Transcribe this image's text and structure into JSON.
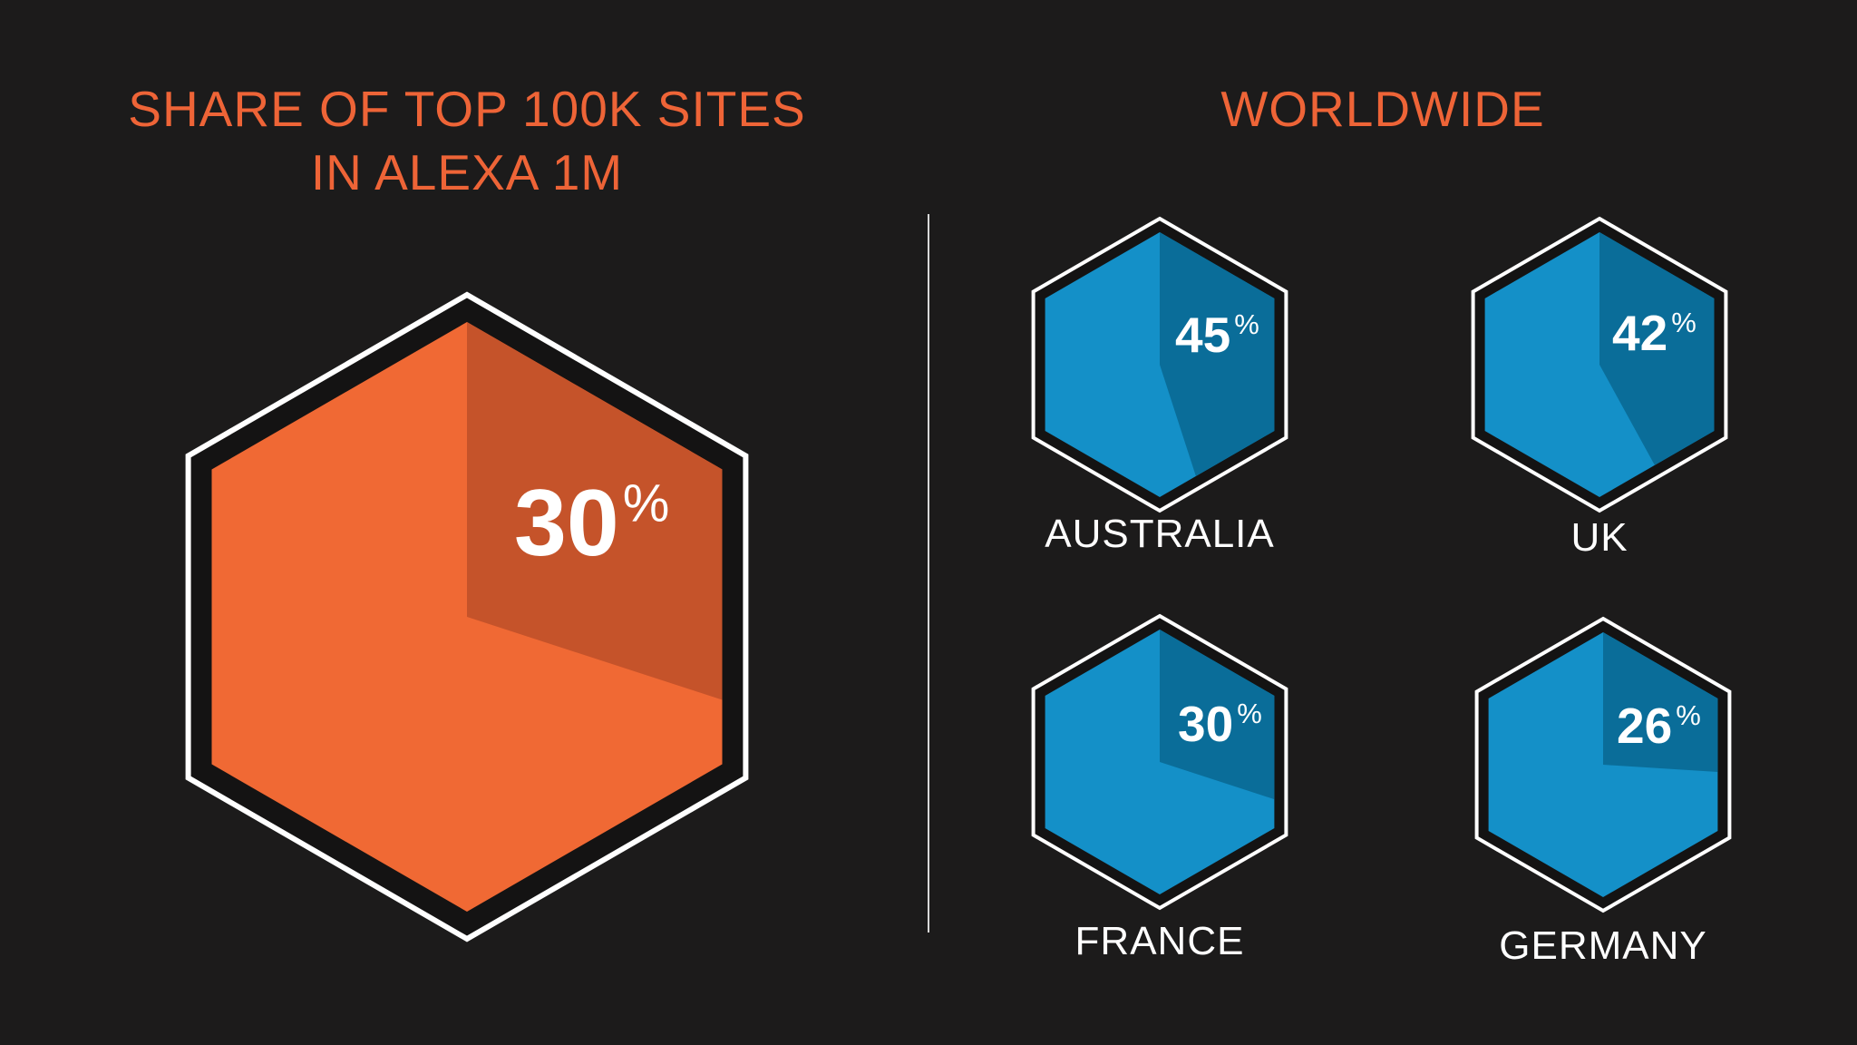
{
  "left_title": {
    "line1": "SHARE OF TOP 100K SITES",
    "line2": "IN ALEXA 1M"
  },
  "right_title": "WORLDWIDE",
  "colors": {
    "background": "#1c1b1b",
    "title": "#ee6437",
    "orange_fill": "#f06934",
    "orange_share": "#c5532a",
    "blue_fill": "#1490c8",
    "blue_share": "#0a6d99",
    "outline": "#ffffff",
    "label": "#ffffff"
  },
  "chart_data": [
    {
      "type": "pie",
      "title": "SHARE OF TOP 100K SITES IN ALEXA 1M",
      "categories": [
        ""
      ],
      "values": [
        30
      ],
      "value_labels": [
        "30%"
      ],
      "unit": "%"
    },
    {
      "type": "pie",
      "title": "WORLDWIDE",
      "categories": [
        "AUSTRALIA",
        "UK",
        "FRANCE",
        "GERMANY"
      ],
      "values": [
        45,
        42,
        30,
        26
      ],
      "value_labels": [
        "45%",
        "42%",
        "30%",
        "26%"
      ],
      "unit": "%"
    }
  ]
}
